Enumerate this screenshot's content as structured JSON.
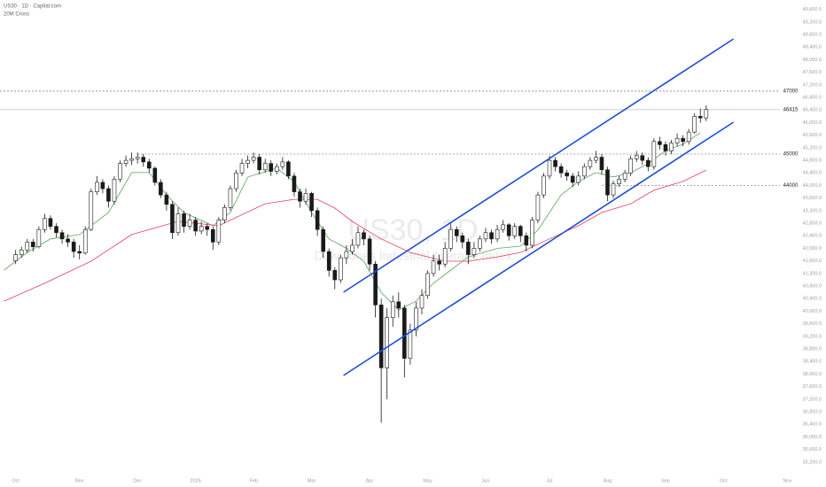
{
  "chart_data": {
    "type": "candlestick",
    "header": "US30 · 1D · Capital.com",
    "subheader": "20M Cross",
    "watermark": "US30, 1D",
    "watermark_subtitle": "Dow Jones Industrial Average Index",
    "ylim": [
      34690,
      49901
    ],
    "xlim": [
      -2.7,
      134
    ],
    "grid": false,
    "up_color": "#ffffff",
    "down_color": "#1a1a1a",
    "yticks": [
      {
        "value": 49600,
        "label": "49,600.0"
      },
      {
        "value": 49200,
        "label": "49,200.0"
      },
      {
        "value": 48800,
        "label": "48,800.0"
      },
      {
        "value": 48400,
        "label": "48,400.0"
      },
      {
        "value": 48000,
        "label": "48,000.0"
      },
      {
        "value": 47600,
        "label": "47,600.0"
      },
      {
        "value": 47200,
        "label": "47,200.0"
      },
      {
        "value": 46800,
        "label": "46,800.0"
      },
      {
        "value": 46400,
        "label": "46,400.0"
      },
      {
        "value": 46000,
        "label": "46,000.0"
      },
      {
        "value": 45600,
        "label": "45,600.0"
      },
      {
        "value": 45200,
        "label": "45,200.0"
      },
      {
        "value": 44800,
        "label": "44,800.0"
      },
      {
        "value": 44400,
        "label": "44,400.0"
      },
      {
        "value": 44000,
        "label": "44,000.0"
      },
      {
        "value": 43600,
        "label": "43,600.0"
      },
      {
        "value": 43200,
        "label": "43,200.0"
      },
      {
        "value": 42800,
        "label": "42,800.0"
      },
      {
        "value": 42400,
        "label": "42,400.0"
      },
      {
        "value": 42000,
        "label": "42,000.0"
      },
      {
        "value": 41600,
        "label": "41,600.0"
      },
      {
        "value": 41200,
        "label": "41,200.0"
      },
      {
        "value": 40800,
        "label": "40,800.0"
      },
      {
        "value": 40400,
        "label": "40,400.0"
      },
      {
        "value": 40000,
        "label": "40,000.0"
      },
      {
        "value": 39600,
        "label": "39,600.0"
      },
      {
        "value": 39200,
        "label": "39,200.0"
      },
      {
        "value": 38800,
        "label": "38,800.0"
      },
      {
        "value": 38400,
        "label": "38,400.0"
      },
      {
        "value": 38000,
        "label": "38,000.0"
      },
      {
        "value": 37600,
        "label": "37,600.0"
      },
      {
        "value": 37200,
        "label": "37,200.0"
      },
      {
        "value": 36800,
        "label": "36,800.0"
      },
      {
        "value": 36400,
        "label": "36,400.0"
      },
      {
        "value": 36000,
        "label": "36,000.0"
      },
      {
        "value": 35600,
        "label": "35,600.0"
      },
      {
        "value": 35200,
        "label": "35,200.0"
      }
    ],
    "xticks": [
      {
        "value": 0,
        "label": "Oct"
      },
      {
        "value": 11,
        "label": "Nov"
      },
      {
        "value": 21,
        "label": "Dec"
      },
      {
        "value": 31,
        "label": "2025"
      },
      {
        "value": 41,
        "label": "Feb"
      },
      {
        "value": 51,
        "label": "Mar"
      },
      {
        "value": 61,
        "label": "Apr"
      },
      {
        "value": 71,
        "label": "May"
      },
      {
        "value": 81,
        "label": "Jun"
      },
      {
        "value": 92,
        "label": "Jul"
      },
      {
        "value": 102,
        "label": "Aug"
      },
      {
        "value": 112,
        "label": "Sep"
      },
      {
        "value": 122,
        "label": "Oct"
      },
      {
        "value": 133,
        "label": "Nov"
      }
    ],
    "ohlc": [
      [
        41600,
        41950,
        41500,
        41800
      ],
      [
        41800,
        42050,
        41700,
        41950
      ],
      [
        41950,
        42300,
        41850,
        42200
      ],
      [
        42200,
        42300,
        41900,
        42050
      ],
      [
        42050,
        42700,
        42000,
        42600
      ],
      [
        42600,
        43100,
        42500,
        42950
      ],
      [
        42950,
        43050,
        42600,
        42700
      ],
      [
        42700,
        42800,
        42350,
        42500
      ],
      [
        42500,
        42600,
        42150,
        42300
      ],
      [
        42300,
        42450,
        42050,
        42200
      ],
      [
        42200,
        42300,
        41700,
        41900
      ],
      [
        41900,
        42100,
        41650,
        41850
      ],
      [
        41850,
        42700,
        41800,
        42600
      ],
      [
        42600,
        43900,
        42550,
        43800
      ],
      [
        43800,
        44300,
        43700,
        44100
      ],
      [
        44100,
        44200,
        43750,
        43900
      ],
      [
        43900,
        44000,
        43300,
        43500
      ],
      [
        43500,
        44300,
        43400,
        44200
      ],
      [
        44200,
        44800,
        44100,
        44700
      ],
      [
        44700,
        44950,
        44600,
        44800
      ],
      [
        44800,
        45050,
        44650,
        44850
      ],
      [
        44850,
        45050,
        44700,
        44900
      ],
      [
        44900,
        45000,
        44600,
        44750
      ],
      [
        44750,
        44850,
        44400,
        44550
      ],
      [
        44550,
        44600,
        44000,
        44100
      ],
      [
        44100,
        44200,
        43600,
        43700
      ],
      [
        43700,
        43800,
        43200,
        43400
      ],
      [
        43400,
        43500,
        42300,
        42500
      ],
      [
        42500,
        43300,
        42400,
        43100
      ],
      [
        43100,
        43200,
        42500,
        42700
      ],
      [
        42700,
        43100,
        42600,
        42900
      ],
      [
        42900,
        43000,
        42400,
        42550
      ],
      [
        42550,
        42850,
        42450,
        42700
      ],
      [
        42700,
        42800,
        42400,
        42600
      ],
      [
        42600,
        42700,
        41950,
        42200
      ],
      [
        42200,
        43000,
        42100,
        42900
      ],
      [
        42900,
        43400,
        42800,
        43300
      ],
      [
        43300,
        44000,
        43200,
        43900
      ],
      [
        43900,
        44500,
        43800,
        44400
      ],
      [
        44400,
        44850,
        44300,
        44700
      ],
      [
        44700,
        44950,
        44550,
        44800
      ],
      [
        44800,
        45050,
        44700,
        44900
      ],
      [
        44900,
        45000,
        44350,
        44500
      ],
      [
        44500,
        44850,
        44400,
        44700
      ],
      [
        44700,
        44800,
        44300,
        44450
      ],
      [
        44450,
        44700,
        44350,
        44600
      ],
      [
        44600,
        44900,
        44500,
        44750
      ],
      [
        44750,
        44800,
        44200,
        44300
      ],
      [
        44300,
        44400,
        43650,
        43800
      ],
      [
        43800,
        43900,
        43300,
        43500
      ],
      [
        43500,
        43900,
        43400,
        43750
      ],
      [
        43750,
        43800,
        43000,
        43200
      ],
      [
        43200,
        43300,
        42400,
        42600
      ],
      [
        42600,
        42700,
        41700,
        41900
      ],
      [
        41900,
        42000,
        41100,
        41300
      ],
      [
        41300,
        41400,
        40700,
        41000
      ],
      [
        41000,
        41800,
        40900,
        41700
      ],
      [
        41700,
        42100,
        41500,
        41900
      ],
      [
        41900,
        42300,
        41800,
        42100
      ],
      [
        42100,
        42700,
        42000,
        42500
      ],
      [
        42500,
        42600,
        42100,
        42300
      ],
      [
        42300,
        42400,
        41300,
        41500
      ],
      [
        41500,
        41600,
        39800,
        40200
      ],
      [
        40200,
        40400,
        36450,
        38200
      ],
      [
        38200,
        40100,
        37200,
        39800
      ],
      [
        39800,
        40500,
        39500,
        40300
      ],
      [
        40300,
        40600,
        39800,
        40100
      ],
      [
        40100,
        40200,
        37900,
        38500
      ],
      [
        38500,
        39600,
        38300,
        39400
      ],
      [
        39400,
        40300,
        39200,
        40100
      ],
      [
        40100,
        40700,
        39900,
        40500
      ],
      [
        40500,
        41300,
        40400,
        41200
      ],
      [
        41200,
        41800,
        41100,
        41600
      ],
      [
        41600,
        41800,
        41300,
        41500
      ],
      [
        41500,
        42200,
        41400,
        42000
      ],
      [
        42000,
        42800,
        41900,
        42600
      ],
      [
        42600,
        42700,
        42200,
        42400
      ],
      [
        42400,
        42500,
        42000,
        42200
      ],
      [
        42200,
        42300,
        41500,
        41800
      ],
      [
        41800,
        42200,
        41700,
        42000
      ],
      [
        42000,
        42400,
        41900,
        42300
      ],
      [
        42300,
        42650,
        42200,
        42500
      ],
      [
        42500,
        42600,
        42150,
        42300
      ],
      [
        42300,
        42750,
        42200,
        42600
      ],
      [
        42600,
        42900,
        42500,
        42750
      ],
      [
        42750,
        42800,
        42250,
        42400
      ],
      [
        42400,
        42800,
        42300,
        42700
      ],
      [
        42700,
        42750,
        42200,
        42400
      ],
      [
        42400,
        42500,
        41900,
        42100
      ],
      [
        42100,
        43000,
        42000,
        42900
      ],
      [
        42900,
        43800,
        42800,
        43700
      ],
      [
        43700,
        44400,
        43600,
        44300
      ],
      [
        44300,
        44950,
        44200,
        44800
      ],
      [
        44800,
        44900,
        44450,
        44600
      ],
      [
        44600,
        44700,
        44250,
        44400
      ],
      [
        44400,
        44500,
        44150,
        44300
      ],
      [
        44300,
        44400,
        43950,
        44100
      ],
      [
        44100,
        44450,
        44000,
        44300
      ],
      [
        44300,
        44700,
        44200,
        44600
      ],
      [
        44600,
        44900,
        44500,
        44800
      ],
      [
        44800,
        45100,
        44700,
        44900
      ],
      [
        44900,
        45000,
        44350,
        44500
      ],
      [
        44500,
        44600,
        43500,
        43700
      ],
      [
        43700,
        44150,
        43600,
        44050
      ],
      [
        44050,
        44300,
        43950,
        44200
      ],
      [
        44200,
        44500,
        44100,
        44400
      ],
      [
        44400,
        44950,
        44300,
        44850
      ],
      [
        44850,
        45100,
        44750,
        44950
      ],
      [
        44950,
        45050,
        44650,
        44800
      ],
      [
        44800,
        44900,
        44450,
        44600
      ],
      [
        44600,
        45500,
        44500,
        45400
      ],
      [
        45400,
        45550,
        45150,
        45300
      ],
      [
        45300,
        45400,
        44950,
        45100
      ],
      [
        45100,
        45450,
        45000,
        45350
      ],
      [
        45350,
        45650,
        45250,
        45500
      ],
      [
        45500,
        45600,
        45250,
        45400
      ],
      [
        45400,
        45800,
        45300,
        45700
      ],
      [
        45700,
        46300,
        45650,
        46200
      ],
      [
        46200,
        46450,
        46000,
        46150
      ],
      [
        46150,
        46550,
        46050,
        46415
      ]
    ],
    "series": [
      {
        "color": "#5aa55a",
        "x": [
          -2,
          2,
          6,
          11,
          16,
          20,
          23,
          26,
          29,
          34,
          37,
          40,
          45,
          48,
          51,
          54,
          57,
          60,
          63,
          66,
          69,
          72,
          75,
          78,
          83,
          87,
          90,
          94,
          97,
          100,
          103,
          106,
          109,
          112,
          115,
          118
        ],
        "values": [
          41310,
          41870,
          42300,
          42440,
          43140,
          44410,
          44410,
          43700,
          43140,
          42720,
          43140,
          44270,
          44550,
          44130,
          43140,
          42300,
          42000,
          41590,
          40600,
          40040,
          40320,
          40890,
          41310,
          41730,
          42000,
          42070,
          42580,
          43700,
          44130,
          44410,
          44270,
          44410,
          44690,
          45110,
          45310,
          45680
        ]
      },
      {
        "color": "#e0405a",
        "x": [
          -2,
          5,
          13,
          20,
          28,
          35,
          43,
          48,
          52,
          55,
          58,
          63,
          68,
          74,
          78,
          83,
          87,
          92,
          97,
          101,
          106,
          110,
          115,
          119
        ],
        "values": [
          40320,
          40890,
          41590,
          42440,
          42860,
          42720,
          43420,
          43560,
          43560,
          43280,
          42860,
          42300,
          41870,
          41590,
          41590,
          41730,
          41870,
          42300,
          42720,
          43140,
          43420,
          43850,
          44130,
          44490
        ]
      }
    ],
    "trendlines": [
      {
        "color": "#1e4fd8",
        "x": [
          56.5,
          123.7
        ],
        "values": [
          40606,
          48662
        ]
      },
      {
        "color": "#1e4fd8",
        "x": [
          56.5,
          123.7
        ],
        "values": [
          37958,
          46014
        ]
      }
    ],
    "levels": [
      {
        "value": 47000,
        "from": -2.7,
        "style": "dashed"
      },
      {
        "value": 46415,
        "from": -2.7,
        "style": "solid"
      },
      {
        "value": 45000,
        "from": 21,
        "style": "dashed"
      },
      {
        "value": 44000,
        "from": 101,
        "style": "dashed"
      }
    ]
  }
}
